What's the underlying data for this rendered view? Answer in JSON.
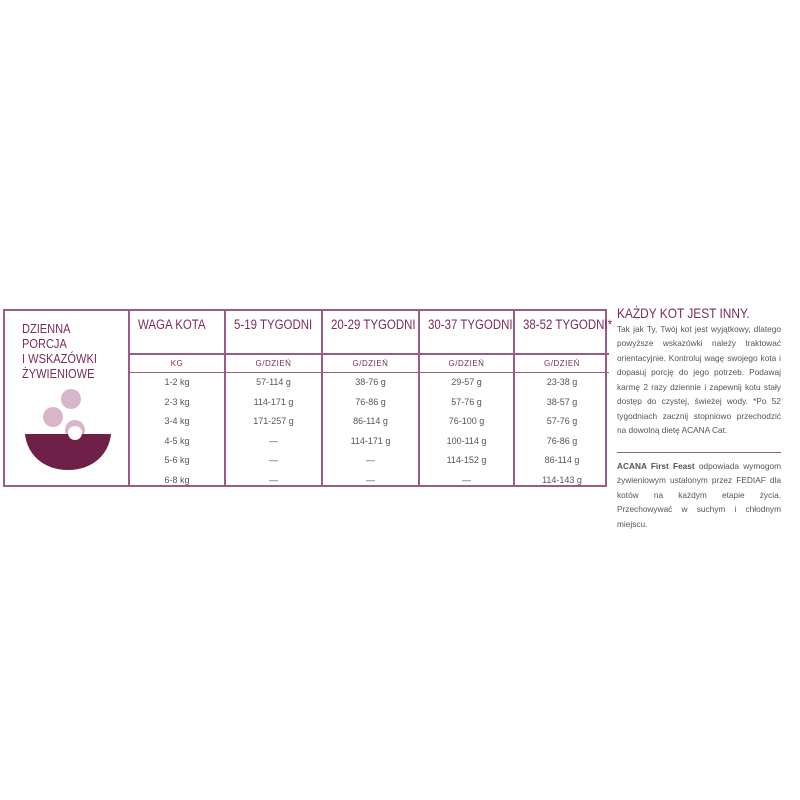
{
  "title": "DZIENNA PORCJA I WSKAZÓWKI ŻYWIENIOWE",
  "title_lines": [
    "DZIENNA PORCJA",
    "I WSKAZÓWKI",
    "ŻYWIENIOWE"
  ],
  "colors": {
    "accent": "#7b2c5e",
    "border": "#9a5c86",
    "bowl": "#6e2048",
    "food": "#d9b5cc"
  },
  "icon": "food-bowl-icon",
  "columns": [
    {
      "header": "WAGA KOTA",
      "unit": "KG",
      "values": [
        "1-2 kg",
        "2-3 kg",
        "3-4 kg",
        "4-5 kg",
        "5-6 kg",
        "6-8 kg"
      ]
    },
    {
      "header": "5-19 TYGODNI",
      "unit": "G/DZIEŃ",
      "values": [
        "57-114 g",
        "114-171 g",
        "171-257 g",
        "—",
        "—",
        "—"
      ]
    },
    {
      "header": "20-29 TYGODNI",
      "unit": "G/DZIEŃ",
      "values": [
        "38-76 g",
        "76-86 g",
        "86-114 g",
        "114-171 g",
        "—",
        "—"
      ]
    },
    {
      "header": "30-37 TYGODNI",
      "unit": "G/DZIEŃ",
      "values": [
        "29-57 g",
        "57-76 g",
        "76-100 g",
        "100-114 g",
        "114-152 g",
        "—"
      ]
    },
    {
      "header": "38-52 TYGODNI*",
      "unit": "G/DZIEŃ",
      "values": [
        "23-38 g",
        "38-57 g",
        "57-76 g",
        "76-86 g",
        "86-114 g",
        "114-143 g"
      ]
    }
  ],
  "side": {
    "heading": "KAŻDY KOT JEST INNY.",
    "body": "Tak jak Ty, Twój kot jest wyjątkowy, dlatego powyższe wskazówki należy traktować orientacyjnie. Kontroluj wagę swojego kota i dopasuj porcję do jego potrzeb. Podawaj karmę 2 razy dziennie i zapewnij kotu stały dostęp do czystej, świeżej wody. *Po 52 tygodniach zacznij stopniowo przechodzić na dowolną dietę ACANA Cat.",
    "note_bold": "ACANA First Feast",
    "note": " odpowiada wymogom żywieniowym ustalonym przez FEDIAF dla kotów na każdym etapie życia. Przechowywać w suchym i chłodnym miejscu."
  }
}
